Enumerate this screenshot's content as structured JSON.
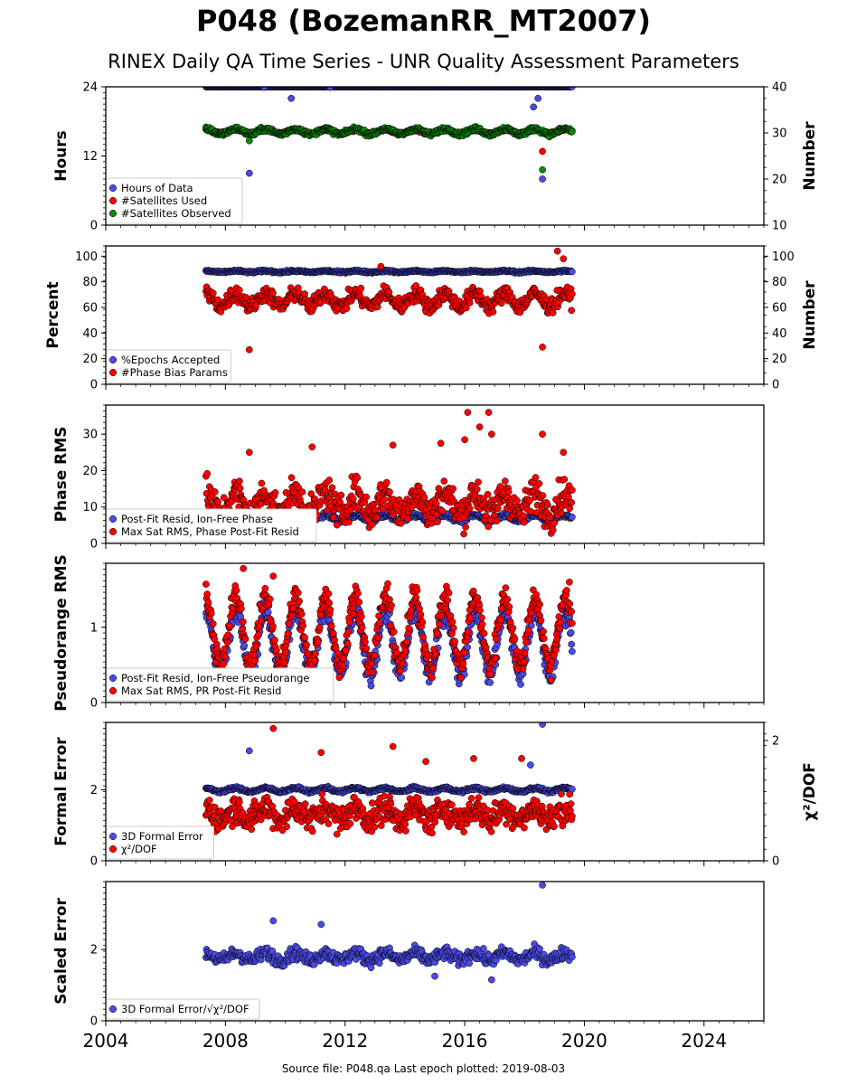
{
  "title": "P048 (BozemanRR_MT2007)",
  "subtitle": "RINEX Daily QA Time Series - UNR Quality Assessment Parameters",
  "footer": "Source file: P048.qa Last epoch plotted: 2019-08-03",
  "colors": {
    "blue": "#4a4ae6",
    "red": "#ff0000",
    "green": "#0b8a0b",
    "edge": "#000000"
  },
  "chart_data": [
    {
      "type": "scatter",
      "ylabel": "Hours",
      "ylim": [
        0,
        24
      ],
      "yticks": [
        "0",
        "12",
        "24"
      ],
      "ylabel_right": "Number",
      "ylim_right": [
        10,
        40
      ],
      "yticks_right": [
        "10",
        "20",
        "30",
        "40"
      ],
      "legend": [
        "Hours of Data",
        "#Satellites Used",
        "#Satellites Observed"
      ],
      "series": [
        {
          "name": "Hours of Data",
          "color": "blue",
          "axis": "left",
          "start": 2007.35,
          "end": 2019.59,
          "base": 24.0,
          "spread": 0.02,
          "seasonal": 0.0,
          "outliers": [
            [
              2009.3,
              23.9
            ],
            [
              2010.2,
              22.0
            ],
            [
              2011.5,
              23.9
            ],
            [
              2018.3,
              20.5
            ],
            [
              2018.45,
              22.0
            ],
            [
              2008.8,
              9.0
            ],
            [
              2018.6,
              8.0
            ]
          ]
        },
        {
          "name": "#Satellites Used",
          "color": "red",
          "axis": "right",
          "start": 2007.35,
          "end": 2019.59,
          "base": 30.3,
          "spread": 0.6,
          "seasonal": 0.4,
          "outliers": [
            [
              2009.6,
              30.1
            ],
            [
              2018.6,
              26.0
            ]
          ]
        },
        {
          "name": "#Satellites Observed",
          "color": "green",
          "axis": "right",
          "start": 2007.35,
          "end": 2019.59,
          "base": 30.3,
          "spread": 0.9,
          "seasonal": 0.6,
          "outliers": [
            [
              2008.8,
              28.3
            ],
            [
              2018.6,
              22.0
            ]
          ]
        }
      ]
    },
    {
      "type": "scatter",
      "ylabel": "Percent",
      "ylim": [
        0,
        108
      ],
      "yticks": [
        "0",
        "20",
        "40",
        "60",
        "80",
        "100"
      ],
      "ylabel_right": "Number",
      "ylim_right": [
        0,
        108
      ],
      "yticks_right": [
        "0",
        "20",
        "40",
        "60",
        "80",
        "100"
      ],
      "legend": [
        "%Epochs Accepted",
        "#Phase Bias Params"
      ],
      "series": [
        {
          "name": "%Epochs Accepted",
          "color": "blue",
          "axis": "left",
          "start": 2007.35,
          "end": 2019.59,
          "base": 88.0,
          "spread": 1.5,
          "seasonal": 0.5,
          "outliers": []
        },
        {
          "name": "#Phase Bias Params",
          "color": "red",
          "axis": "left",
          "start": 2007.35,
          "end": 2019.59,
          "base": 66.0,
          "spread": 12.0,
          "seasonal": 5.0,
          "outliers": [
            [
              2008.8,
              27.0
            ],
            [
              2018.6,
              29.0
            ],
            [
              2019.1,
              104.0
            ],
            [
              2019.3,
              98.0
            ],
            [
              2013.2,
              92.0
            ]
          ]
        }
      ]
    },
    {
      "type": "scatter",
      "ylabel": "Phase RMS",
      "ylim": [
        0,
        38
      ],
      "yticks": [
        "0",
        "10",
        "20",
        "30"
      ],
      "legend": [
        "Post-Fit Resid, Ion-Free Phase",
        "Max Sat RMS, Phase Post-Fit Resid"
      ],
      "series": [
        {
          "name": "Post-Fit Resid, Ion-Free Phase",
          "color": "blue",
          "axis": "left",
          "start": 2007.35,
          "end": 2019.59,
          "base": 7.0,
          "spread": 1.2,
          "seasonal": 0.8,
          "outliers": []
        },
        {
          "name": "Max Sat RMS, Phase Post-Fit Resid",
          "color": "red",
          "axis": "left",
          "start": 2007.35,
          "end": 2019.59,
          "base": 11.0,
          "spread": 9.0,
          "seasonal": 3.0,
          "outliers": [
            [
              2008.8,
              25.0
            ],
            [
              2010.9,
              26.5
            ],
            [
              2013.6,
              27.0
            ],
            [
              2016.1,
              36.0
            ],
            [
              2016.5,
              32.0
            ],
            [
              2016.8,
              36.0
            ],
            [
              2016.9,
              30.0
            ],
            [
              2018.6,
              30.0
            ],
            [
              2019.3,
              25.0
            ],
            [
              2016.0,
              28.5
            ],
            [
              2015.2,
              27.5
            ]
          ]
        }
      ]
    },
    {
      "type": "scatter",
      "ylabel": "Pseudorange RMS",
      "ylim": [
        0,
        1.85
      ],
      "yticks": [
        "0",
        "1"
      ],
      "legend": [
        "Post-Fit Resid, Ion-Free Pseudorange",
        "Max Sat RMS, PR Post-Fit Resid"
      ],
      "series": [
        {
          "name": "Post-Fit Resid, Ion-Free Pseudorange",
          "color": "blue",
          "axis": "left",
          "start": 2007.35,
          "end": 2019.59,
          "base": 0.8,
          "spread": 0.3,
          "seasonal": 0.42,
          "outliers": []
        },
        {
          "name": "Max Sat RMS, PR Post-Fit Resid",
          "color": "red",
          "axis": "left",
          "start": 2007.35,
          "end": 2019.59,
          "base": 0.95,
          "spread": 0.35,
          "seasonal": 0.45,
          "outliers": [
            [
              2008.6,
              1.78
            ],
            [
              2009.6,
              1.68
            ],
            [
              2019.5,
              1.6
            ]
          ]
        }
      ]
    },
    {
      "type": "scatter",
      "ylabel": "Formal Error",
      "ylim": [
        0,
        3.9
      ],
      "yticks": [
        "0",
        "2"
      ],
      "ylabel_right": "χ²/DOF",
      "ylim_right": [
        0,
        2.3
      ],
      "yticks_right": [
        "0",
        "2"
      ],
      "legend": [
        "3D Formal Error",
        "χ²/DOF"
      ],
      "series": [
        {
          "name": "3D Formal Error",
          "color": "blue",
          "axis": "left",
          "start": 2007.35,
          "end": 2019.59,
          "base": 2.0,
          "spread": 0.08,
          "seasonal": 0.05,
          "outliers": [
            [
              2008.8,
              3.1
            ],
            [
              2018.6,
              3.85
            ],
            [
              2018.2,
              2.7
            ]
          ]
        },
        {
          "name": "χ²/DOF",
          "color": "red",
          "axis": "right",
          "start": 2007.35,
          "end": 2019.59,
          "base": 0.78,
          "spread": 0.45,
          "seasonal": 0.1,
          "outliers": [
            [
              2009.6,
              2.2
            ],
            [
              2013.6,
              1.9
            ],
            [
              2011.2,
              1.8
            ],
            [
              2017.9,
              1.7
            ],
            [
              2016.3,
              1.7
            ],
            [
              2014.7,
              1.65
            ]
          ]
        }
      ]
    },
    {
      "type": "scatter",
      "ylabel": "Scaled Error",
      "ylim": [
        0,
        3.9
      ],
      "yticks": [
        "0",
        "2"
      ],
      "legend": [
        "3D Formal Error/√χ²/DOF"
      ],
      "series": [
        {
          "name": "3D Formal Error/√χ²/DOF",
          "color": "blue",
          "axis": "left",
          "start": 2007.35,
          "end": 2019.59,
          "base": 1.8,
          "spread": 0.35,
          "seasonal": 0.1,
          "outliers": [
            [
              2009.6,
              2.8
            ],
            [
              2011.2,
              2.7
            ],
            [
              2016.9,
              1.15
            ],
            [
              2018.6,
              3.8
            ],
            [
              2015.0,
              1.25
            ]
          ]
        }
      ]
    }
  ],
  "xaxis": {
    "xlim": [
      2004,
      2026
    ],
    "ticks": [
      "2004",
      "2008",
      "2012",
      "2016",
      "2020",
      "2024"
    ]
  }
}
